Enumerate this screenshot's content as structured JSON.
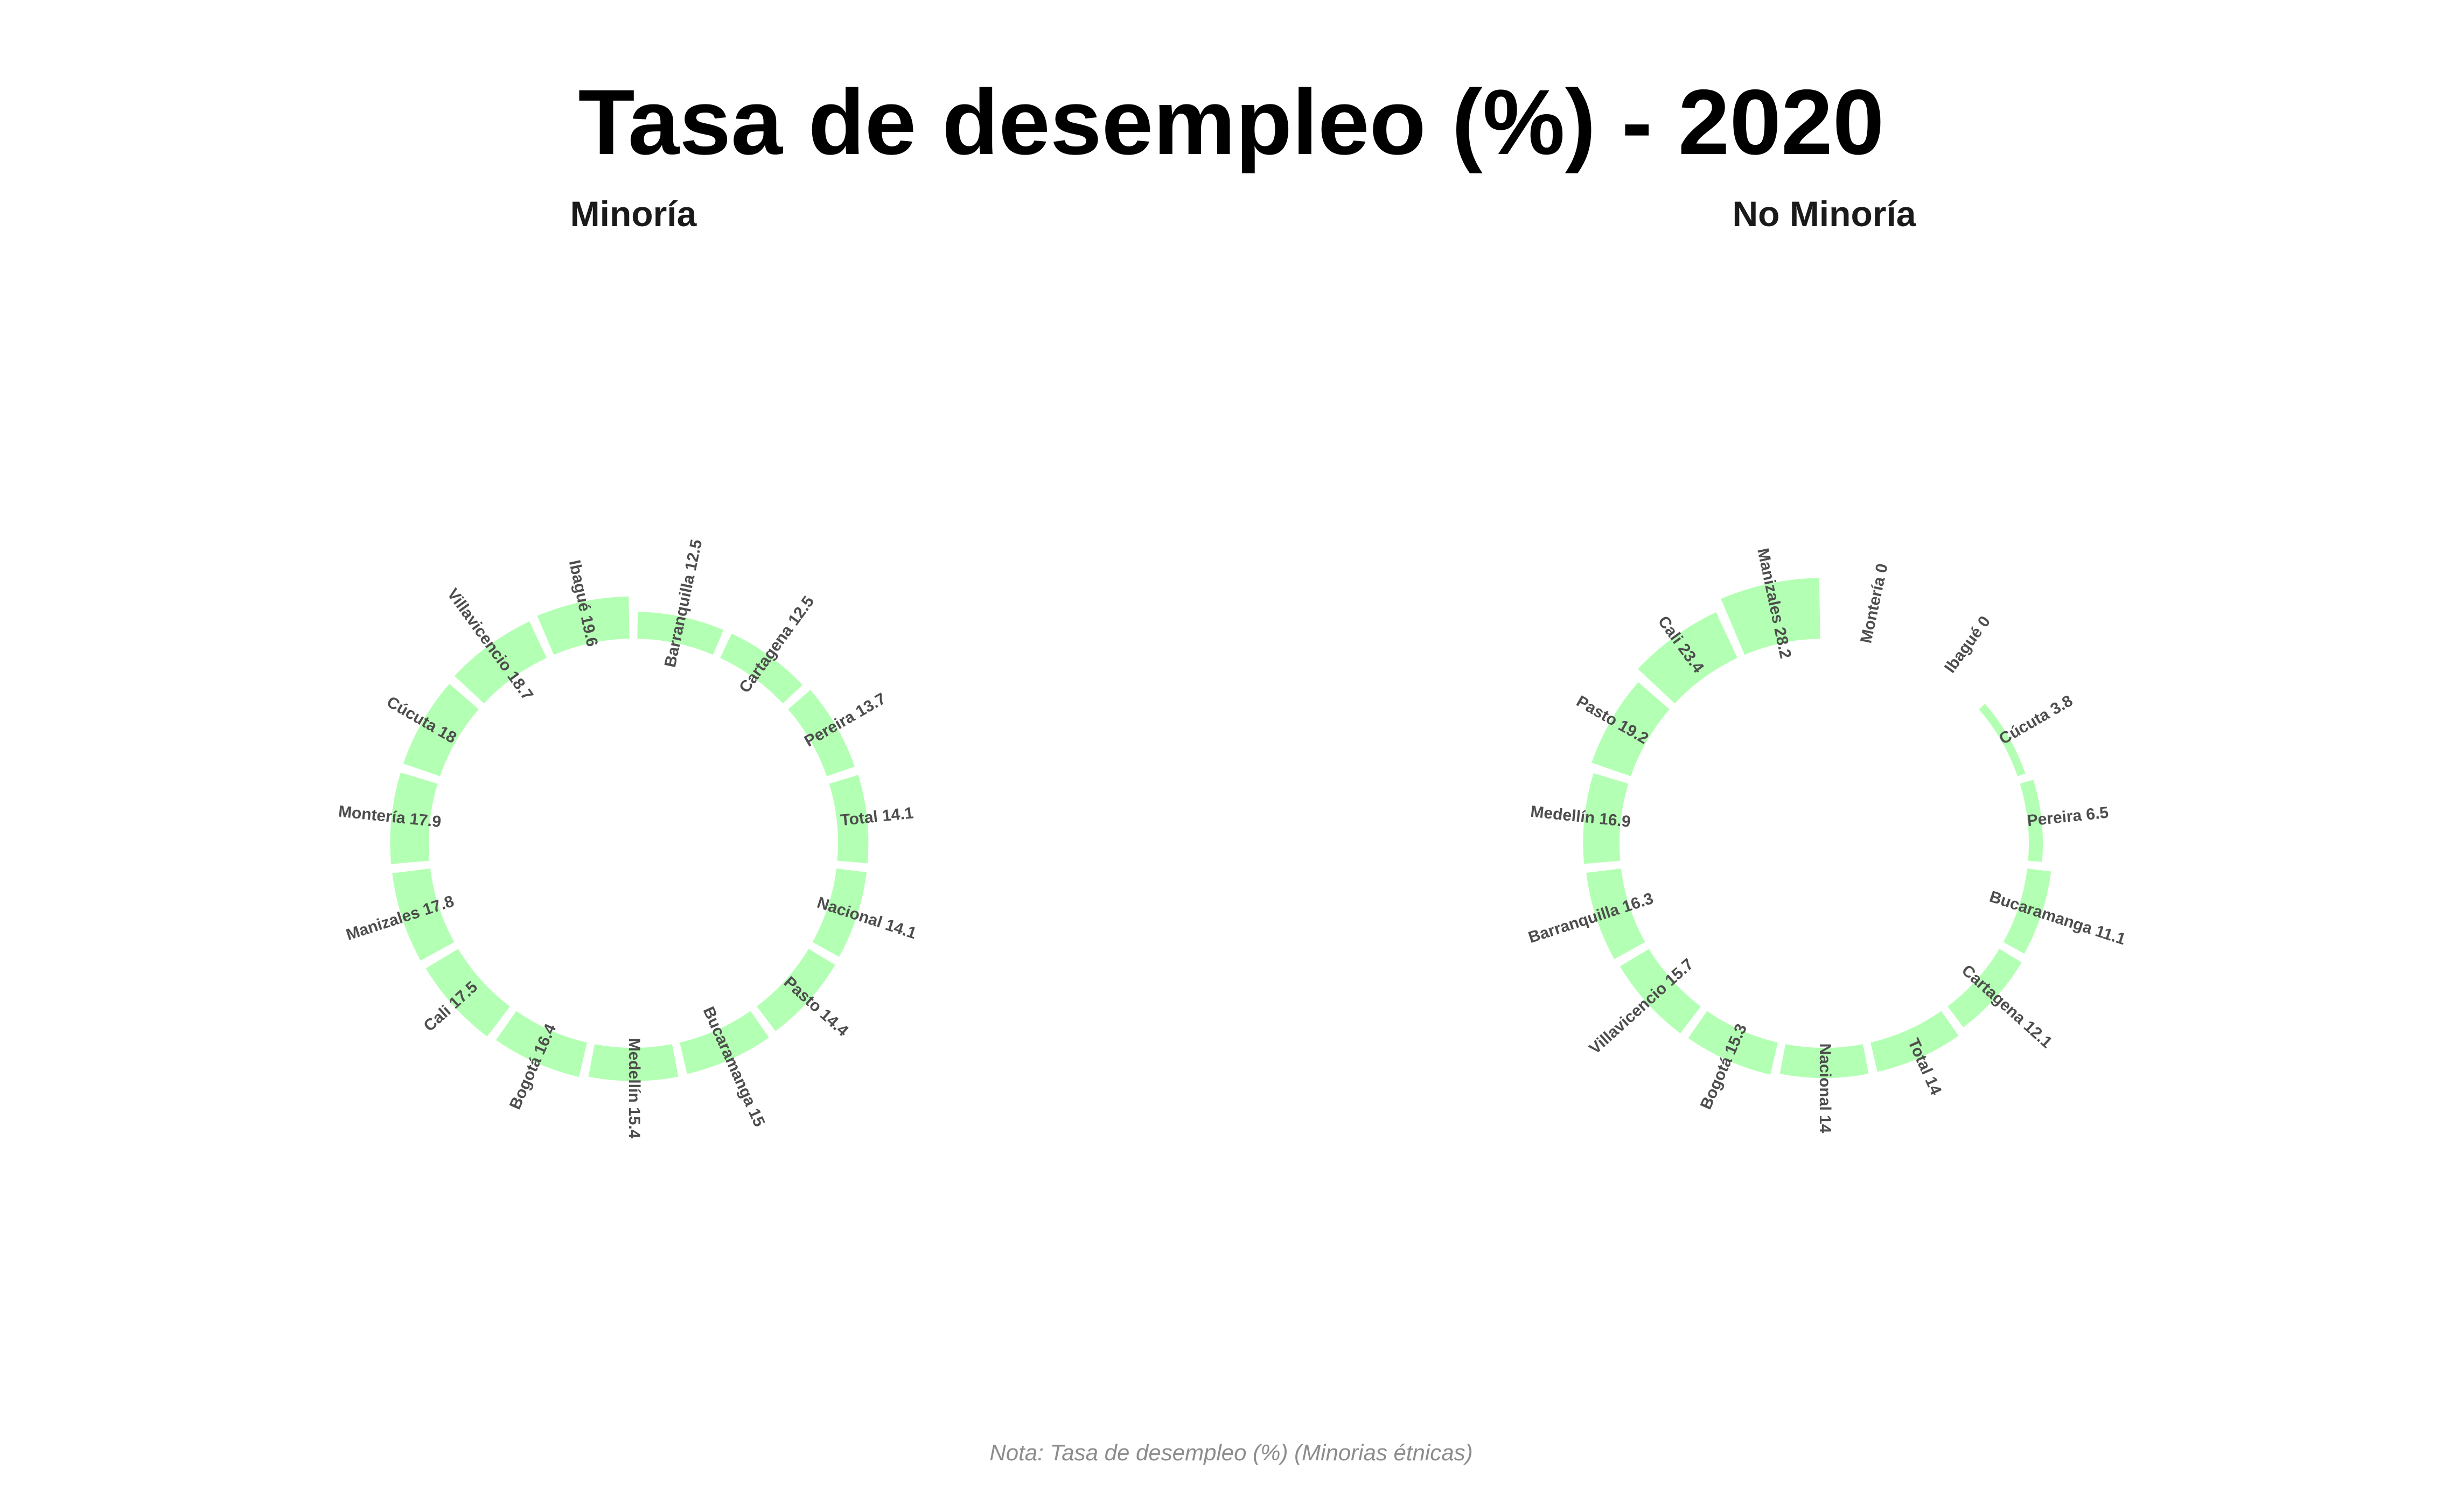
{
  "title": "Tasa de desempleo (%) - 2020",
  "note": "Nota: Tasa de desempleo (%) (Minorias étnicas)",
  "colors": {
    "bar": "#b3ffb3",
    "label": "#4d4d4d",
    "note": "#8c8c8c"
  },
  "chart_data": [
    {
      "type": "bar",
      "coordinates": "polar",
      "title": "Minoría",
      "categories": [
        "Barranquilla",
        "Cartagena",
        "Pereira",
        "Total",
        "Nacional",
        "Pasto",
        "Bucaramanga",
        "Medellín",
        "Bogotá",
        "Cali",
        "Manizales",
        "Montería",
        "Cúcuta",
        "Villavicencio",
        "Ibagué"
      ],
      "values": [
        12.5,
        12.5,
        13.7,
        14.1,
        14.1,
        14.4,
        15,
        15.4,
        16.4,
        17.5,
        17.8,
        17.9,
        18,
        18.7,
        19.6
      ],
      "labels": [
        "Barranquilla 12.5",
        "Cartagena 12.5",
        "Pereira 13.7",
        "Total 14.1",
        "Nacional 14.1",
        "Pasto 14.4",
        "Bucaramanga 15",
        "Medellín 15.4",
        "Bogotá 16.4",
        "Cali 17.5",
        "Manizales 17.8",
        "Montería 17.9",
        "Cúcuta 18",
        "Villavicencio 18.7",
        "Ibagué 19.6"
      ]
    },
    {
      "type": "bar",
      "coordinates": "polar",
      "title": "No Minoría",
      "categories": [
        "Montería",
        "Ibagué",
        "Cúcuta",
        "Pereira",
        "Bucaramanga",
        "Cartagena",
        "Total",
        "Nacional",
        "Bogotá",
        "Villavicencio",
        "Barranquilla",
        "Medellín",
        "Pasto",
        "Cali",
        "Manizales"
      ],
      "values": [
        0,
        0,
        3.8,
        6.5,
        11.1,
        12.1,
        14,
        14,
        15.3,
        15.7,
        16.3,
        16.9,
        19.2,
        23.4,
        28.2
      ],
      "labels": [
        "Montería 0",
        "Ibagué 0",
        "Cúcuta 3.8",
        "Pereira 6.5",
        "Bucaramanga 11.1",
        "Cartagena 12.1",
        "Total 14",
        "Nacional 14",
        "Bogotá 15.3",
        "Villavicencio 15.7",
        "Barranquilla 16.3",
        "Medellín 16.9",
        "Pasto 19.2",
        "Cali 23.4",
        "Manizales 28.2"
      ]
    }
  ]
}
